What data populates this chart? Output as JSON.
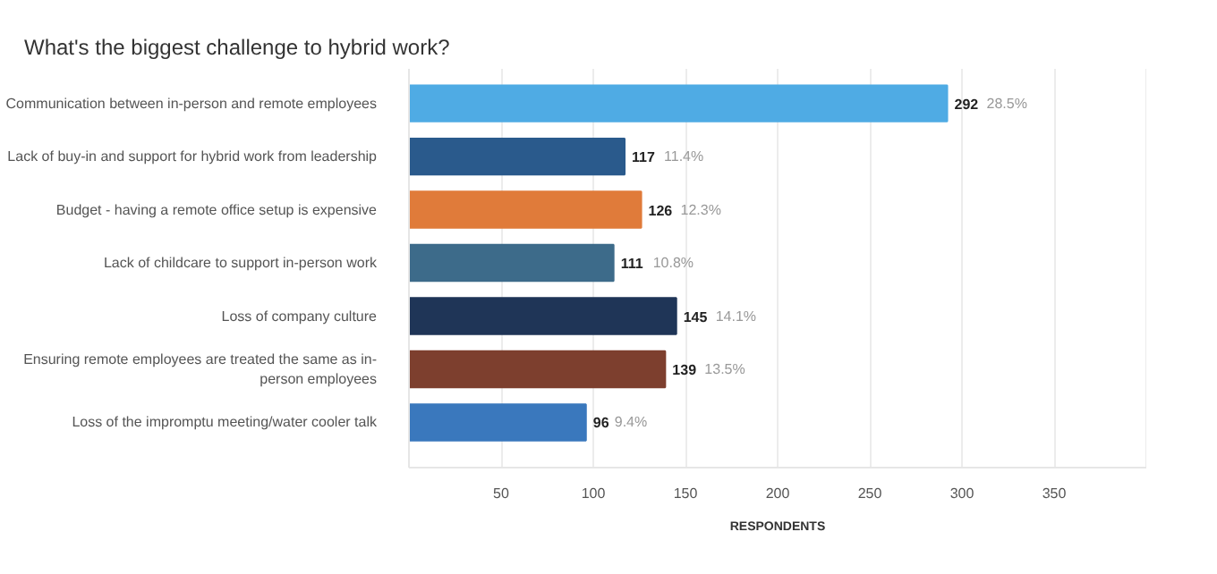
{
  "chart_data": {
    "type": "bar",
    "orientation": "horizontal",
    "title": "What's the biggest challenge to hybrid work?",
    "xlabel": "RESPONDENTS",
    "categories": [
      "Communication between in-person and remote employees",
      "Lack of buy-in and support for hybrid work from leadership",
      "Budget - having a remote office setup is expensive",
      "Lack of childcare to support in-person work",
      "Loss of company culture",
      "Ensuring remote employees are treated the same as in-person employees",
      "Loss of the impromptu meeting/water cooler talk"
    ],
    "values": [
      292,
      117,
      126,
      111,
      145,
      139,
      96
    ],
    "colors": [
      "#4fabe4",
      "#2a5a8c",
      "#e07b3a",
      "#3d6b8a",
      "#1f3557",
      "#7d3f2e",
      "#3a78bd"
    ],
    "value_labels": [
      "292 28.5%",
      "117 11.4%",
      "126 12.3%",
      "111 10.8%",
      "145 14.1%",
      "139 13.5%",
      "96 9.4%"
    ],
    "xlim": [
      0,
      400
    ],
    "xticks": [
      50,
      100,
      150,
      200,
      250,
      300,
      350
    ],
    "grid": "x"
  }
}
